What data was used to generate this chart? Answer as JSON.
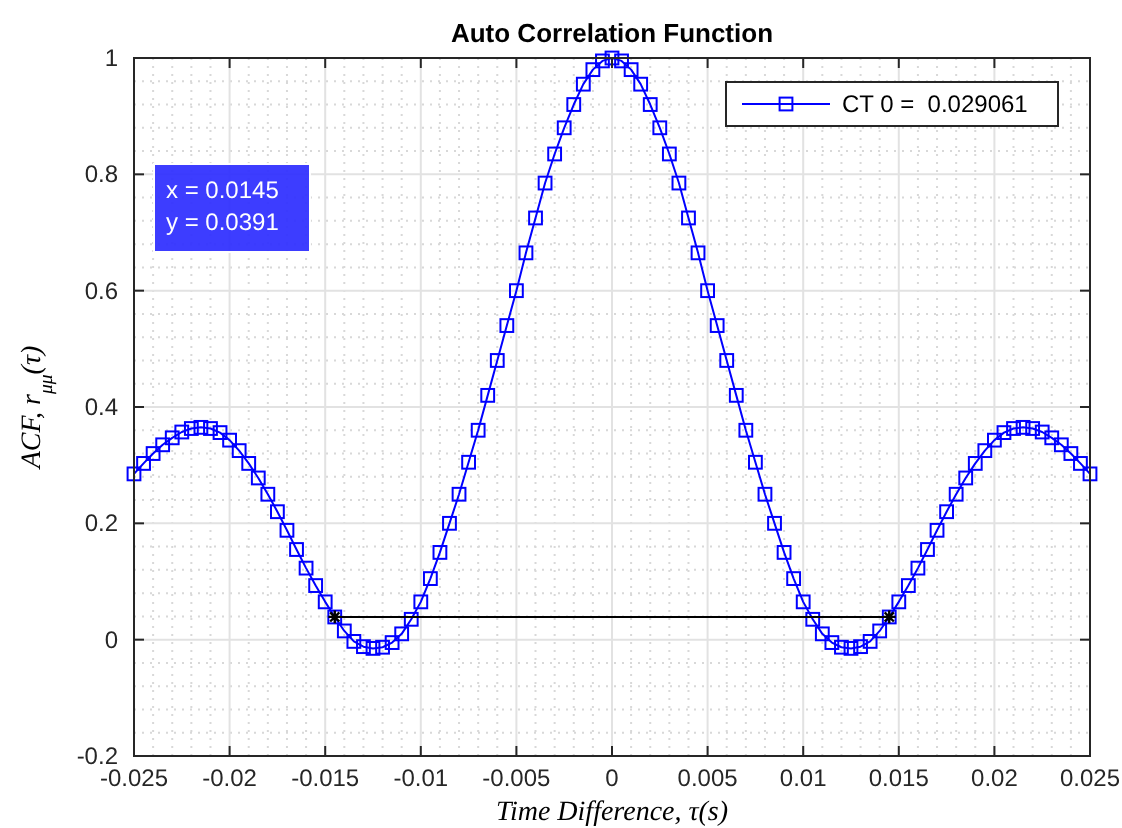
{
  "chart_data": {
    "type": "line",
    "title": "Auto Correlation Function",
    "xlabel": "Time Difference, τ(s)",
    "ylabel": "ACF, r$_{μμ}$(τ)",
    "xlim": [
      -0.025,
      0.025
    ],
    "xticks": [
      -0.025,
      -0.02,
      -0.015,
      -0.01,
      -0.005,
      0,
      0.005,
      0.01,
      0.015,
      0.02,
      0.025
    ],
    "ylim": [
      -0.2,
      1
    ],
    "yticks": [
      -0.2,
      0,
      0.2,
      0.4,
      0.6,
      0.8,
      1
    ],
    "grid": true,
    "legend": "top right",
    "marker": "square",
    "line_style": "solid",
    "annotations": [
      "x = 0.0145",
      "y = 0.0391"
    ],
    "series": [
      {
        "name": "CT 0 =  0.029061",
        "color": "#0000ff",
        "x": [
          -0.025,
          -0.0245,
          -0.024,
          -0.0235,
          -0.023,
          -0.0225,
          -0.022,
          -0.0215,
          -0.021,
          -0.0205,
          -0.02,
          -0.0195,
          -0.019,
          -0.0185,
          -0.018,
          -0.0175,
          -0.017,
          -0.0165,
          -0.016,
          -0.0155,
          -0.015,
          -0.0145,
          -0.014,
          -0.0135,
          -0.013,
          -0.0125,
          -0.012,
          -0.0115,
          -0.011,
          -0.0105,
          -0.01,
          -0.0095,
          -0.009,
          -0.0085,
          -0.008,
          -0.0075,
          -0.007,
          -0.0065,
          -0.006,
          -0.0055,
          -0.005,
          -0.0045,
          -0.004,
          -0.0035,
          -0.003,
          -0.0025,
          -0.002,
          -0.0015,
          -0.001,
          -0.0005,
          0,
          0.0005,
          0.001,
          0.0015,
          0.002,
          0.0025,
          0.003,
          0.0035,
          0.004,
          0.0045,
          0.005,
          0.0055,
          0.006,
          0.0065,
          0.007,
          0.0075,
          0.008,
          0.0085,
          0.009,
          0.0095,
          0.01,
          0.0105,
          0.011,
          0.0115,
          0.012,
          0.0125,
          0.013,
          0.0135,
          0.014,
          0.0145,
          0.015,
          0.0155,
          0.016,
          0.0165,
          0.017,
          0.0175,
          0.018,
          0.0185,
          0.019,
          0.0195,
          0.02,
          0.0205,
          0.021,
          0.0215,
          0.022,
          0.0225,
          0.023,
          0.0235,
          0.024,
          0.0245,
          0.025
        ],
        "values": [
          0.285,
          0.303,
          0.32,
          0.335,
          0.347,
          0.357,
          0.363,
          0.365,
          0.363,
          0.356,
          0.343,
          0.325,
          0.303,
          0.278,
          0.25,
          0.22,
          0.188,
          0.155,
          0.123,
          0.093,
          0.065,
          0.039,
          0.015,
          -0.003,
          -0.012,
          -0.015,
          -0.013,
          -0.005,
          0.01,
          0.035,
          0.065,
          0.105,
          0.15,
          0.2,
          0.25,
          0.305,
          0.36,
          0.42,
          0.48,
          0.54,
          0.6,
          0.665,
          0.725,
          0.785,
          0.835,
          0.88,
          0.92,
          0.955,
          0.98,
          0.995,
          1.0,
          0.995,
          0.98,
          0.955,
          0.92,
          0.88,
          0.835,
          0.785,
          0.725,
          0.665,
          0.6,
          0.54,
          0.48,
          0.42,
          0.36,
          0.305,
          0.25,
          0.2,
          0.15,
          0.105,
          0.065,
          0.035,
          0.01,
          -0.005,
          -0.013,
          -0.015,
          -0.012,
          -0.003,
          0.015,
          0.039,
          0.065,
          0.093,
          0.123,
          0.155,
          0.188,
          0.22,
          0.25,
          0.278,
          0.303,
          0.325,
          0.343,
          0.356,
          0.363,
          0.365,
          0.363,
          0.357,
          0.347,
          0.335,
          0.32,
          0.303,
          0.285
        ]
      },
      {
        "color": "#000000",
        "marker": "cross",
        "x": [
          -0.0145,
          0.0145
        ],
        "values": [
          0.0391,
          0.0391
        ]
      }
    ]
  }
}
